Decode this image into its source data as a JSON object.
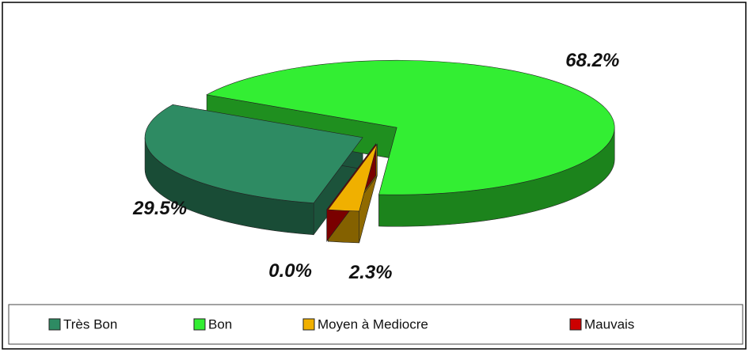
{
  "chart_data": {
    "type": "pie",
    "categories": [
      "Très Bon",
      "Bon",
      "Moyen à Mediocre",
      "Mauvais"
    ],
    "values": [
      29.5,
      68.2,
      2.3,
      0.0
    ],
    "value_labels": [
      "29.5%",
      "68.2%",
      "2.3%",
      "0.0%"
    ],
    "colors": [
      "#2e8b63",
      "#33ee33",
      "#f0b000",
      "#cc0000"
    ],
    "legend": "bottom"
  }
}
